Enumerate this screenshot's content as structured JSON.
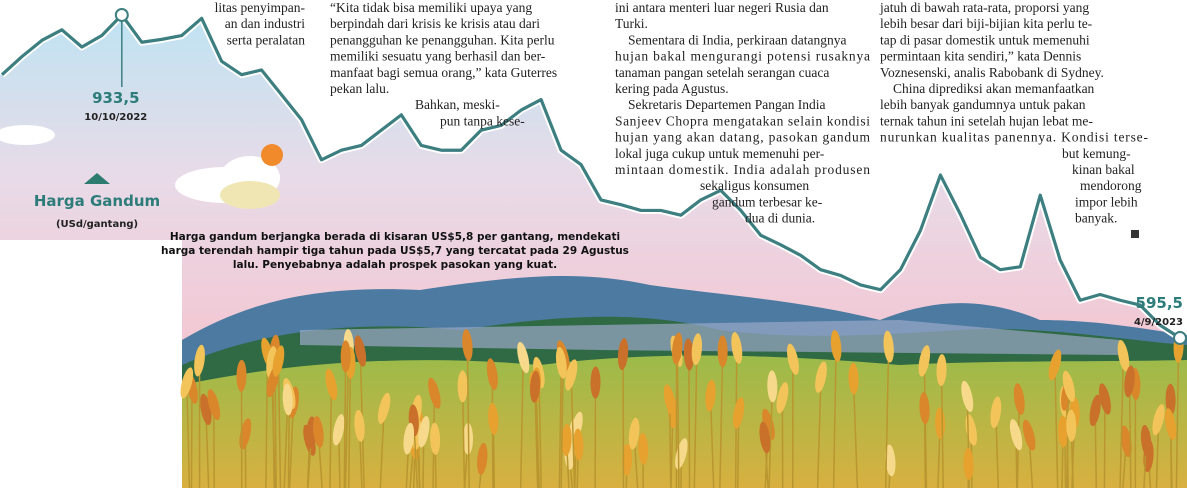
{
  "chart_data": {
    "type": "line",
    "title": "Harga Gandum",
    "subtitle": "(USd/gantang)",
    "annotation": [
      "Harga gandum berjangka berada di kisaran US$5,8 per gantang, mendekati",
      "harga terendah hampir tiga tahun pada US$5,7 yang tercatat pada 29 Agustus",
      "lalu. Penyebabnya adalah prospek pasokan yang kuat."
    ],
    "color": "#3d7f80",
    "categories": [
      null,
      null,
      null,
      null,
      null,
      null,
      "10/10/2022",
      null,
      null,
      null,
      null,
      null,
      null,
      null,
      null,
      null,
      null,
      null,
      null,
      null,
      null,
      null,
      null,
      null,
      null,
      null,
      null,
      null,
      null,
      null,
      null,
      null,
      null,
      null,
      null,
      null,
      null,
      null,
      null,
      null,
      null,
      null,
      null,
      null,
      null,
      null,
      null,
      null,
      null,
      null,
      null,
      null,
      null,
      null,
      null,
      null,
      null,
      null,
      null,
      "4/9/2023"
    ],
    "values": [
      871,
      890,
      907,
      918,
      900,
      912,
      933.5,
      905,
      908,
      912,
      930,
      885,
      871,
      876,
      850,
      824,
      782,
      792,
      797,
      813,
      829,
      797,
      792,
      792,
      813,
      818,
      834,
      845,
      792,
      777,
      740,
      735,
      729,
      729,
      724,
      740,
      750,
      729,
      703,
      693,
      682,
      667,
      661,
      651,
      646,
      667,
      708,
      766,
      725,
      680,
      667,
      670,
      745,
      677,
      635,
      641,
      635,
      630,
      609,
      595.5
    ],
    "value_labels": [
      null,
      null,
      null,
      null,
      null,
      null,
      "933,5",
      null,
      null,
      null,
      null,
      null,
      null,
      null,
      null,
      null,
      null,
      null,
      null,
      null,
      null,
      null,
      null,
      null,
      null,
      null,
      null,
      null,
      null,
      null,
      null,
      null,
      null,
      null,
      null,
      null,
      null,
      null,
      null,
      null,
      null,
      null,
      null,
      null,
      null,
      null,
      null,
      null,
      null,
      null,
      null,
      null,
      null,
      null,
      null,
      null,
      null,
      null,
      null,
      "595,5"
    ]
  },
  "article": {
    "col1": [
      "litas penyimpan-",
      "an dan industri",
      "serta peralatan"
    ],
    "col2": [
      "“Kita tidak bisa memiliki upaya yang",
      "berpindah dari krisis ke krisis atau dari",
      "penangguhan ke penangguhan. Kita perlu",
      "memiliki sesuatu yang berhasil dan ber-",
      "manfaat bagi semua orang,” kata Guterres",
      "pekan lalu.",
      "Bahkan, meski-",
      "pun tanpa kese-"
    ],
    "col3": [
      "ini antara menteri luar negeri Rusia dan",
      "Turki.",
      "Sementara di India, perkiraan datangnya",
      "hujan bakal mengurangi potensi rusaknya",
      "tanaman pangan setelah serangan cuaca",
      "kering pada Agustus.",
      "Sekretaris Departemen Pangan India",
      "Sanjeev Chopra mengatakan selain kondisi",
      "hujan yang akan datang, pasokan gandum",
      "lokal juga cukup untuk memenuhi per-",
      "mintaan domestik. India adalah produsen",
      "sekaligus konsumen",
      "gandum terbesar ke-",
      "dua di dunia."
    ],
    "col4": [
      "jatuh di bawah rata-rata, proporsi yang",
      "lebih besar dari biji-bijian kita perlu te-",
      "tap di pasar domestik untuk memenuhi",
      "permintaan kita sendiri,” kata Dennis",
      "Voznesenski, analis Rabobank di Sydney.",
      "China diprediksi akan memanfaatkan",
      "lebih banyak gandumnya untuk pakan",
      "ternak tahun ini setelah hujan lebat me-",
      "nurunkan kualitas panennya. Kondisi terse-",
      "but kemung-",
      "kinan bakal",
      "mendorong",
      "impor lebih",
      "banyak."
    ]
  }
}
